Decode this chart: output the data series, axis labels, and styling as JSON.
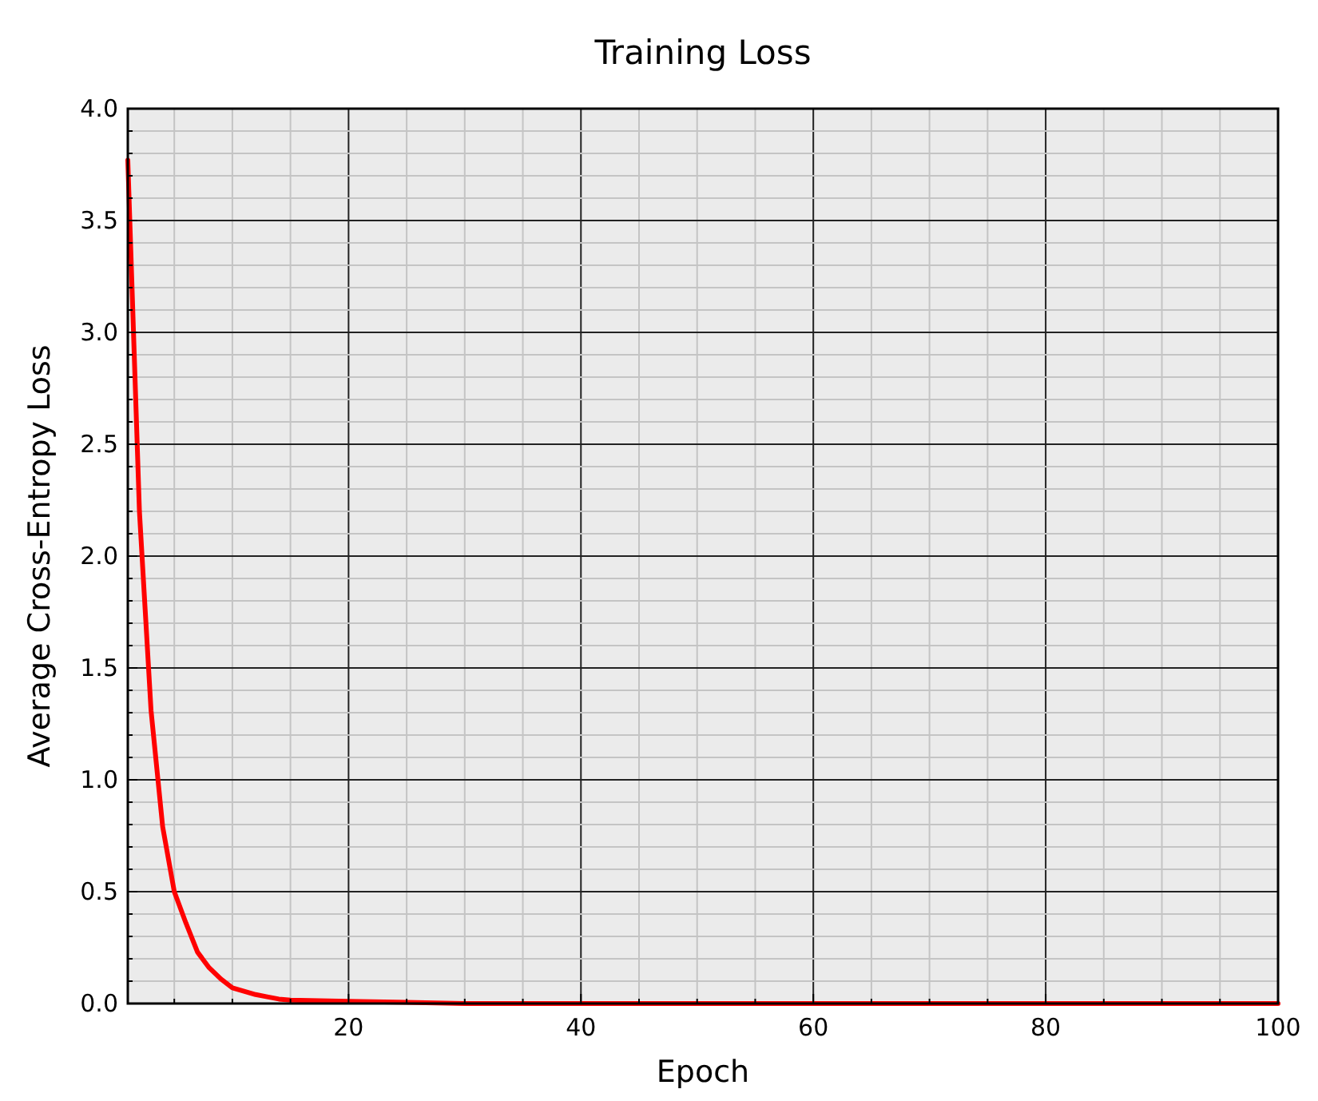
{
  "chart_data": {
    "type": "line",
    "title": "Training Loss",
    "xlabel": "Epoch",
    "ylabel": "Average Cross-Entropy Loss",
    "x": [
      1,
      2,
      3,
      4,
      5,
      6,
      7,
      8,
      9,
      10,
      11,
      12,
      13,
      14,
      15,
      20,
      30,
      40,
      60,
      80,
      100
    ],
    "series": [
      {
        "color": "#ff0000",
        "values": [
          3.77,
          2.2,
          1.31,
          0.79,
          0.5,
          0.36,
          0.23,
          0.16,
          0.11,
          0.07,
          0.055,
          0.04,
          0.03,
          0.02,
          0.015,
          0.01,
          0,
          0,
          0,
          0,
          0
        ]
      }
    ],
    "xlim": [
      1,
      100
    ],
    "xticks": [
      {
        "value": 5,
        "label": null
      },
      {
        "value": 10,
        "label": null
      },
      {
        "value": 15,
        "label": null
      },
      20,
      {
        "value": 25,
        "label": null
      },
      {
        "value": 30,
        "label": null
      },
      {
        "value": 35,
        "label": null
      },
      40,
      {
        "value": 45,
        "label": null
      },
      {
        "value": 50,
        "label": null
      },
      {
        "value": 55,
        "label": null
      },
      60,
      {
        "value": 65,
        "label": null
      },
      {
        "value": 70,
        "label": null
      },
      {
        "value": 75,
        "label": null
      },
      80,
      {
        "value": 85,
        "label": null
      },
      {
        "value": 90,
        "label": null
      },
      {
        "value": 95,
        "label": null
      },
      100
    ],
    "ylim": [
      0,
      4
    ],
    "yticks": [
      {
        "value": 0,
        "label": "0.0"
      },
      {
        "value": 0.1,
        "label": null
      },
      {
        "value": 0.2,
        "label": null
      },
      {
        "value": 0.3,
        "label": null
      },
      {
        "value": 0.4,
        "label": null
      },
      {
        "value": 0.5,
        "label": "0.5"
      },
      {
        "value": 0.6,
        "label": null
      },
      {
        "value": 0.7,
        "label": null
      },
      {
        "value": 0.8,
        "label": null
      },
      {
        "value": 0.9,
        "label": null
      },
      {
        "value": 1,
        "label": "1.0"
      },
      {
        "value": 1.1,
        "label": null
      },
      {
        "value": 1.2,
        "label": null
      },
      {
        "value": 1.3,
        "label": null
      },
      {
        "value": 1.4,
        "label": null
      },
      {
        "value": 1.5,
        "label": "1.5"
      },
      {
        "value": 1.6,
        "label": null
      },
      {
        "value": 1.7,
        "label": null
      },
      {
        "value": 1.8,
        "label": null
      },
      {
        "value": 1.9,
        "label": null
      },
      {
        "value": 2,
        "label": "2.0"
      },
      {
        "value": 2.1,
        "label": null
      },
      {
        "value": 2.2,
        "label": null
      },
      {
        "value": 2.3,
        "label": null
      },
      {
        "value": 2.4,
        "label": null
      },
      {
        "value": 2.5,
        "label": "2.5"
      },
      {
        "value": 2.6,
        "label": null
      },
      {
        "value": 2.7,
        "label": null
      },
      {
        "value": 2.8,
        "label": null
      },
      {
        "value": 2.9,
        "label": null
      },
      {
        "value": 3,
        "label": "3.0"
      },
      {
        "value": 3.1,
        "label": null
      },
      {
        "value": 3.2,
        "label": null
      },
      {
        "value": 3.3,
        "label": null
      },
      {
        "value": 3.4,
        "label": null
      },
      {
        "value": 3.5,
        "label": "3.5"
      },
      {
        "value": 3.6,
        "label": null
      },
      {
        "value": 3.7,
        "label": null
      },
      {
        "value": 3.8,
        "label": null
      },
      {
        "value": 3.9,
        "label": null
      },
      {
        "value": 4,
        "label": "4.0"
      }
    ],
    "grid": true,
    "marker": "none",
    "line_style": "solid"
  }
}
